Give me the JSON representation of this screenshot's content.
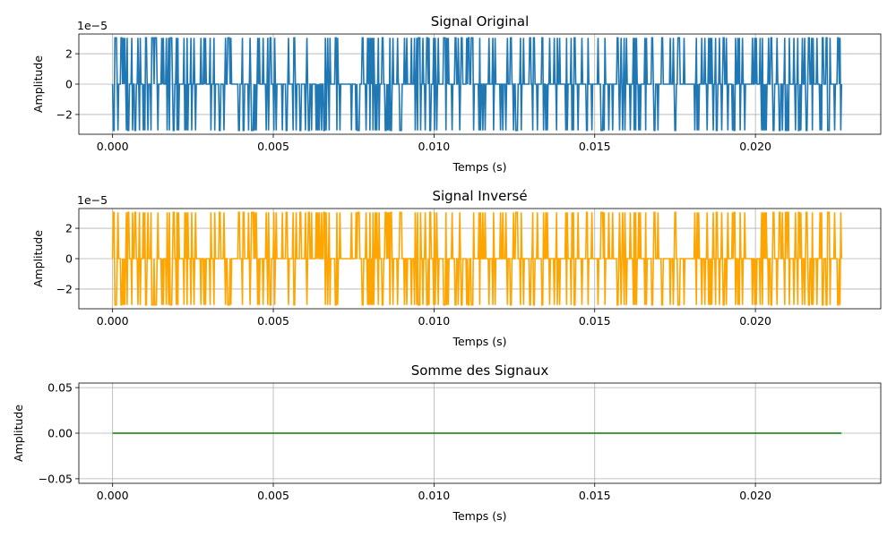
{
  "chart_data": [
    {
      "type": "line",
      "title": "Signal Original",
      "xlabel": "Temps (s)",
      "ylabel": "Amplitude",
      "offset_label": "1e−5",
      "xlim": [
        -0.00105,
        0.0239
      ],
      "ylim": [
        -3.3e-05,
        3.3e-05
      ],
      "xticks": [
        0.0,
        0.005,
        0.01,
        0.015,
        0.02
      ],
      "xtick_labels": [
        "0.000",
        "0.005",
        "0.010",
        "0.015",
        "0.020"
      ],
      "yticks": [
        -2e-05,
        0,
        2e-05
      ],
      "ytick_labels": [
        "−2",
        "0",
        "2"
      ],
      "grid": true,
      "color": "#1f77b4",
      "signal": {
        "x_start": 0.0,
        "x_end": 0.02268,
        "amplitude": 3.05e-05,
        "inverted": false
      }
    },
    {
      "type": "line",
      "title": "Signal Inversé",
      "xlabel": "Temps (s)",
      "ylabel": "Amplitude",
      "offset_label": "1e−5",
      "xlim": [
        -0.00105,
        0.0239
      ],
      "ylim": [
        -3.3e-05,
        3.3e-05
      ],
      "xticks": [
        0.0,
        0.005,
        0.01,
        0.015,
        0.02
      ],
      "xtick_labels": [
        "0.000",
        "0.005",
        "0.010",
        "0.015",
        "0.020"
      ],
      "yticks": [
        -2e-05,
        0,
        2e-05
      ],
      "ytick_labels": [
        "−2",
        "0",
        "2"
      ],
      "grid": true,
      "color": "#ffa500",
      "signal": {
        "x_start": 0.0,
        "x_end": 0.02268,
        "amplitude": 3.05e-05,
        "inverted": true
      }
    },
    {
      "type": "line",
      "title": "Somme des Signaux",
      "xlabel": "Temps (s)",
      "ylabel": "Amplitude",
      "offset_label": "",
      "xlim": [
        -0.00105,
        0.0239
      ],
      "ylim": [
        -0.055,
        0.055
      ],
      "xticks": [
        0.0,
        0.005,
        0.01,
        0.015,
        0.02
      ],
      "xtick_labels": [
        "0.000",
        "0.005",
        "0.010",
        "0.015",
        "0.020"
      ],
      "yticks": [
        -0.05,
        0.0,
        0.05
      ],
      "ytick_labels": [
        "−0.05",
        "0.00",
        "0.05"
      ],
      "grid": true,
      "color": "#008000",
      "series": [
        {
          "x": [
            0.0,
            0.02268
          ],
          "values": [
            0.0,
            0.0
          ]
        }
      ]
    }
  ]
}
